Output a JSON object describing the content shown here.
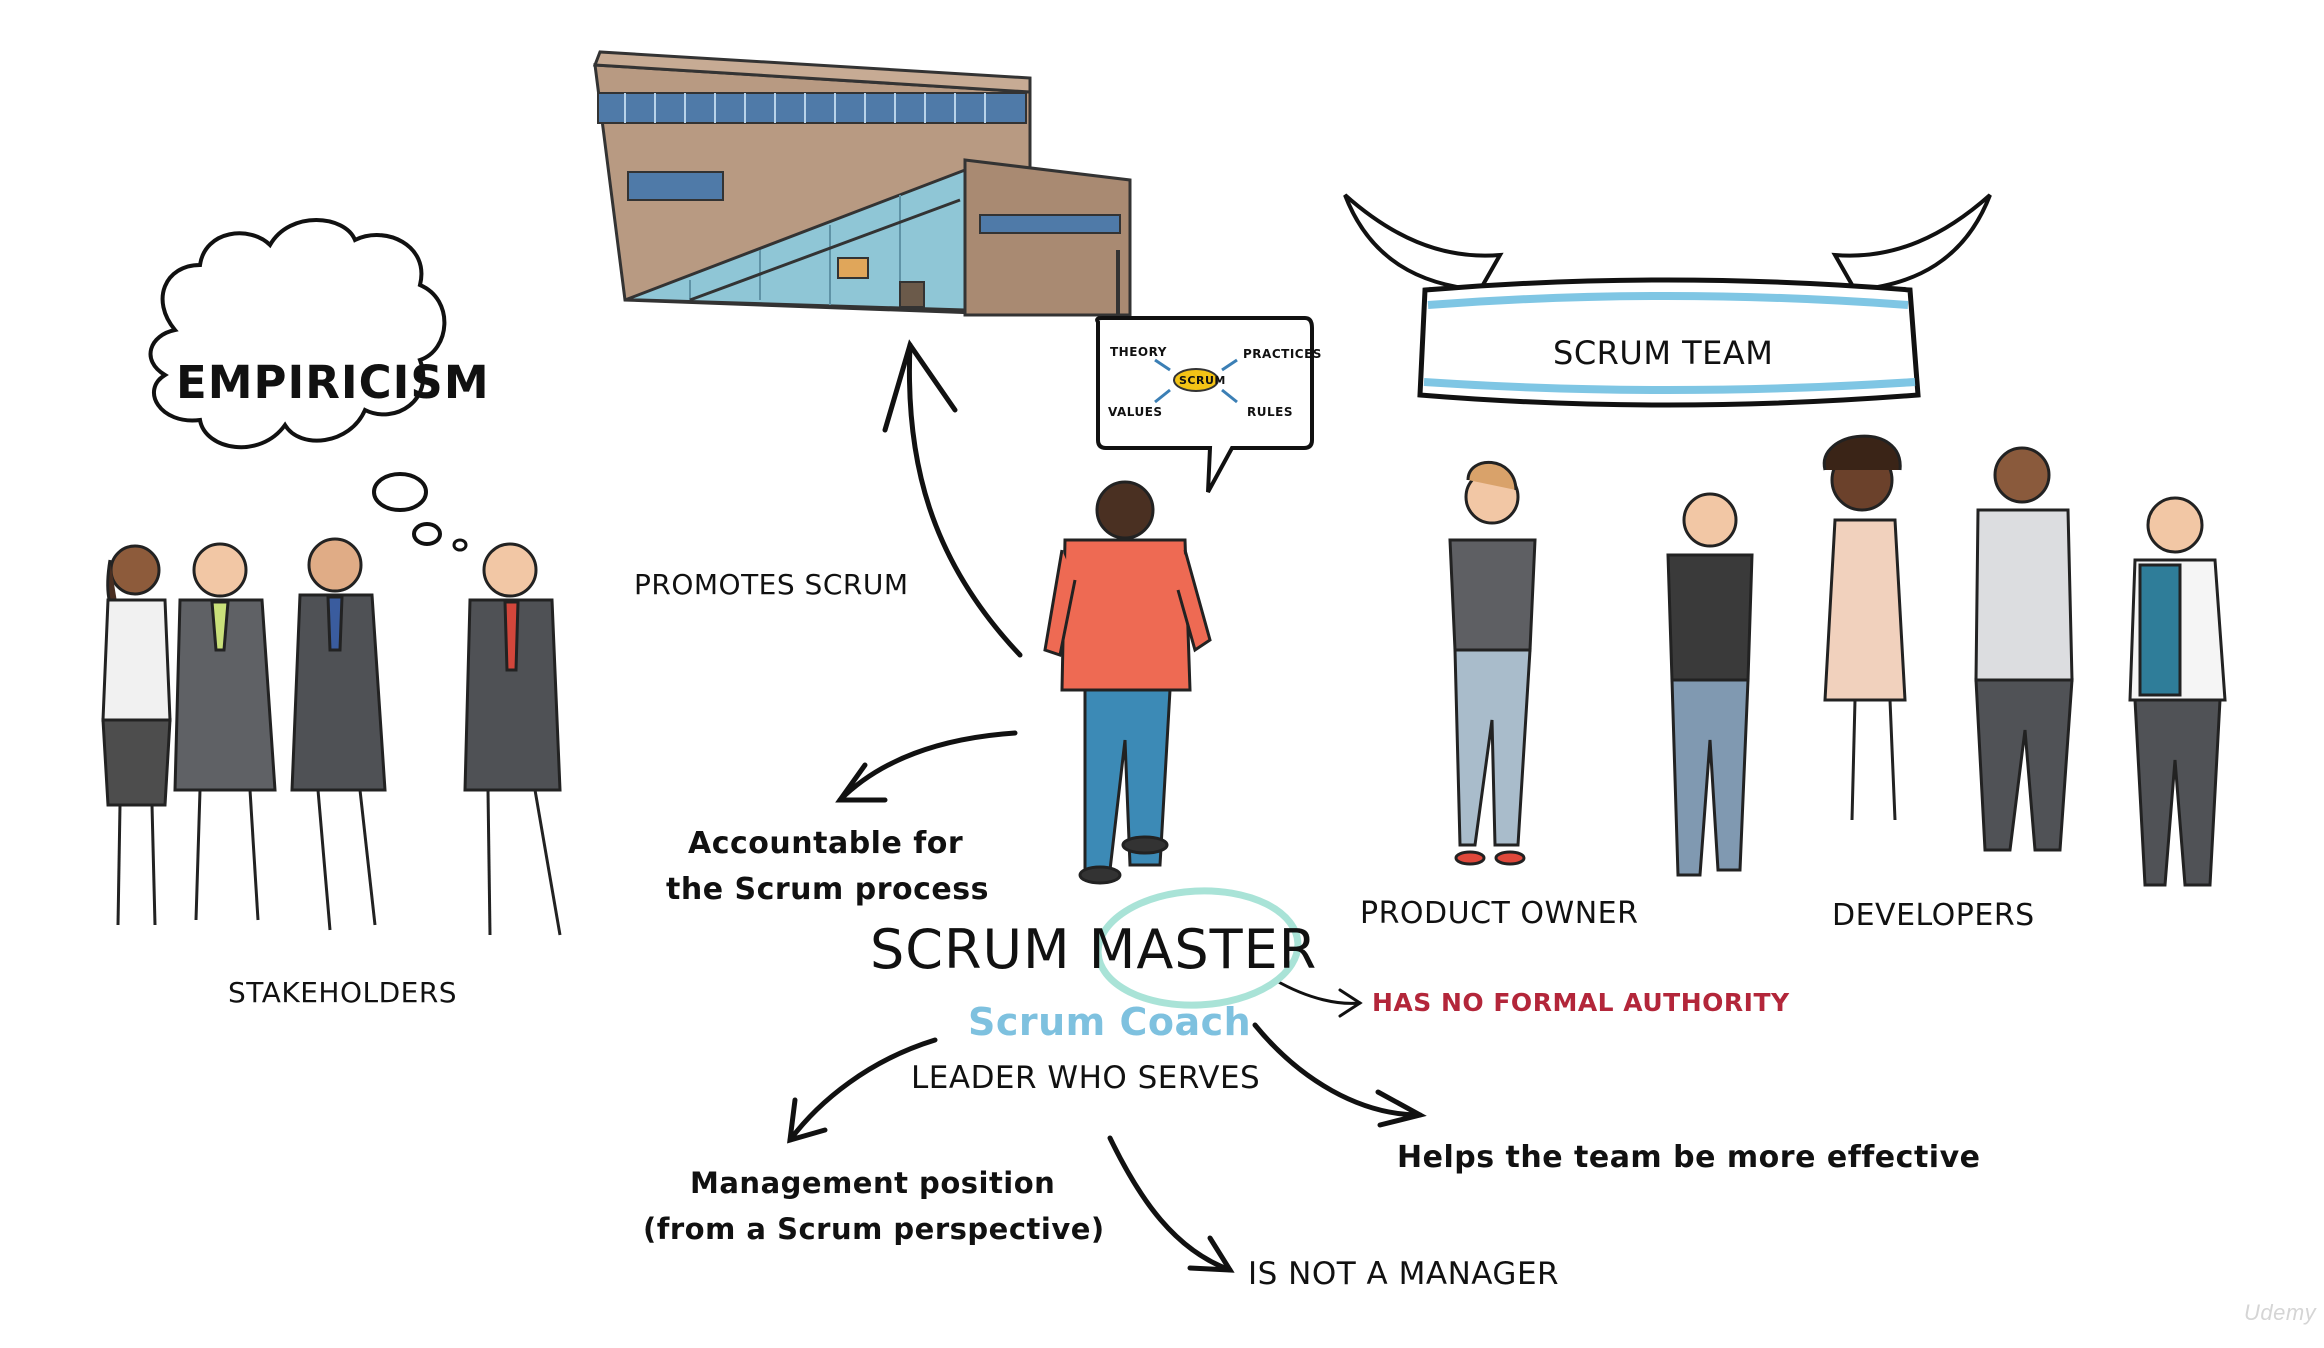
{
  "stakeholders": {
    "label": "STAKEHOLDERS"
  },
  "thought_bubble": {
    "text": "EMPIRICISM"
  },
  "building": {
    "caption": ""
  },
  "promotes": {
    "text": "PROMOTES SCRUM"
  },
  "speech_bubble": {
    "center": "SCRUM",
    "top_left": "THEORY",
    "top_right": "PRACTICES",
    "bottom_left": "VALUES",
    "bottom_right": "RULES"
  },
  "banner": {
    "text": "SCRUM TEAM"
  },
  "product_owner": {
    "label": "PRODUCT OWNER"
  },
  "developers": {
    "label": "DEVELOPERS"
  },
  "scrum_master": {
    "title": "SCRUM MASTER",
    "subtitle": "Scrum Coach",
    "role": "LEADER WHO SERVES"
  },
  "accountable": {
    "line1": "Accountable for",
    "line2": "the Scrum process"
  },
  "no_authority": {
    "text": "HAS NO FORMAL AUTHORITY"
  },
  "helps": {
    "text": "Helps the team be more effective"
  },
  "management": {
    "line1": "Management position",
    "line2": "(from a Scrum perspective)"
  },
  "not_manager": {
    "text": "IS NOT A MANAGER"
  },
  "watermark": {
    "text": "Udemy"
  },
  "colors": {
    "accent_blue": "#7fc6e4",
    "coach_blue": "#7ec1df",
    "circle_teal": "#a9e3d7",
    "authority_red": "#b3263a",
    "ink": "#111111"
  }
}
